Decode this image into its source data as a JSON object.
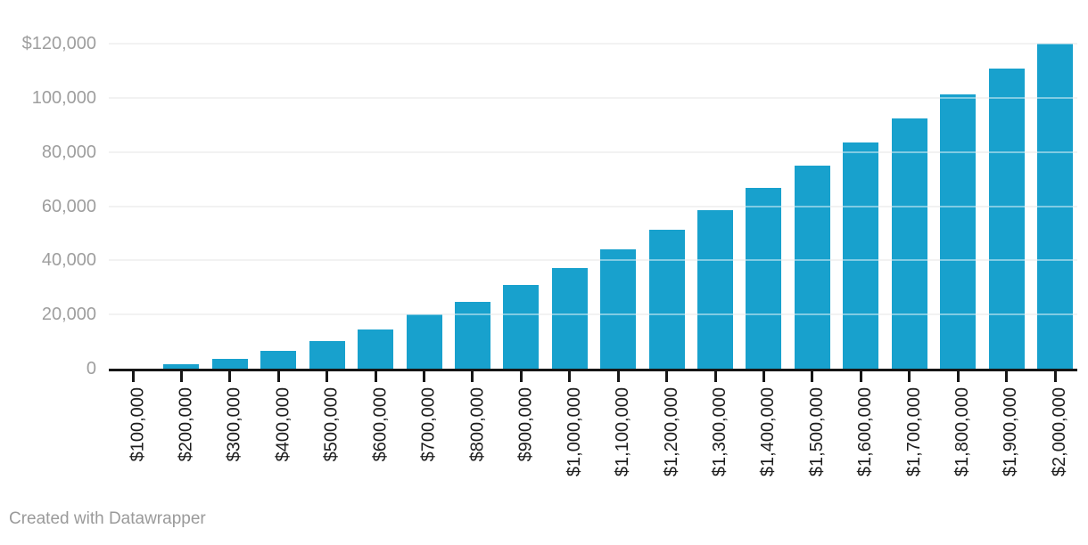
{
  "chart_data": {
    "type": "bar",
    "title": "",
    "xlabel": "",
    "ylabel": "",
    "categories": [
      "$100,000",
      "$200,000",
      "$300,000",
      "$400,000",
      "$500,000",
      "$600,000",
      "$700,000",
      "$800,000",
      "$900,000",
      "$1,000,000",
      "$1,100,000",
      "$1,200,000",
      "$1,300,000",
      "$1,400,000",
      "$1,500,000",
      "$1,600,000",
      "$1,700,000",
      "$1,800,000",
      "$1,900,000",
      "$2,000,000"
    ],
    "values": [
      0,
      1500,
      3550,
      6600,
      10350,
      14500,
      19900,
      24600,
      30900,
      37150,
      44100,
      51300,
      58650,
      66750,
      75000,
      83400,
      92300,
      101300,
      110900,
      120000
    ],
    "ylim": [
      0,
      120000
    ],
    "ytick_interval": 20000,
    "ytick_labels": [
      "0",
      "20,000",
      "40,000",
      "60,000",
      "80,000",
      "100,000",
      "$120,000"
    ],
    "grid": "horizontal",
    "gridlines_drawn_over_bars": true,
    "legend": "none",
    "bar_color": "#18a1cd"
  },
  "colors": {
    "bar": "#18a1cd",
    "gridline": "#e8e8e8",
    "axis": "#161616",
    "x_label": "#1d1d1d",
    "y_label": "#9e9e9e",
    "attribution": "#9a9a9a",
    "background": "#ffffff"
  },
  "footer": {
    "attribution": "Created with Datawrapper"
  }
}
